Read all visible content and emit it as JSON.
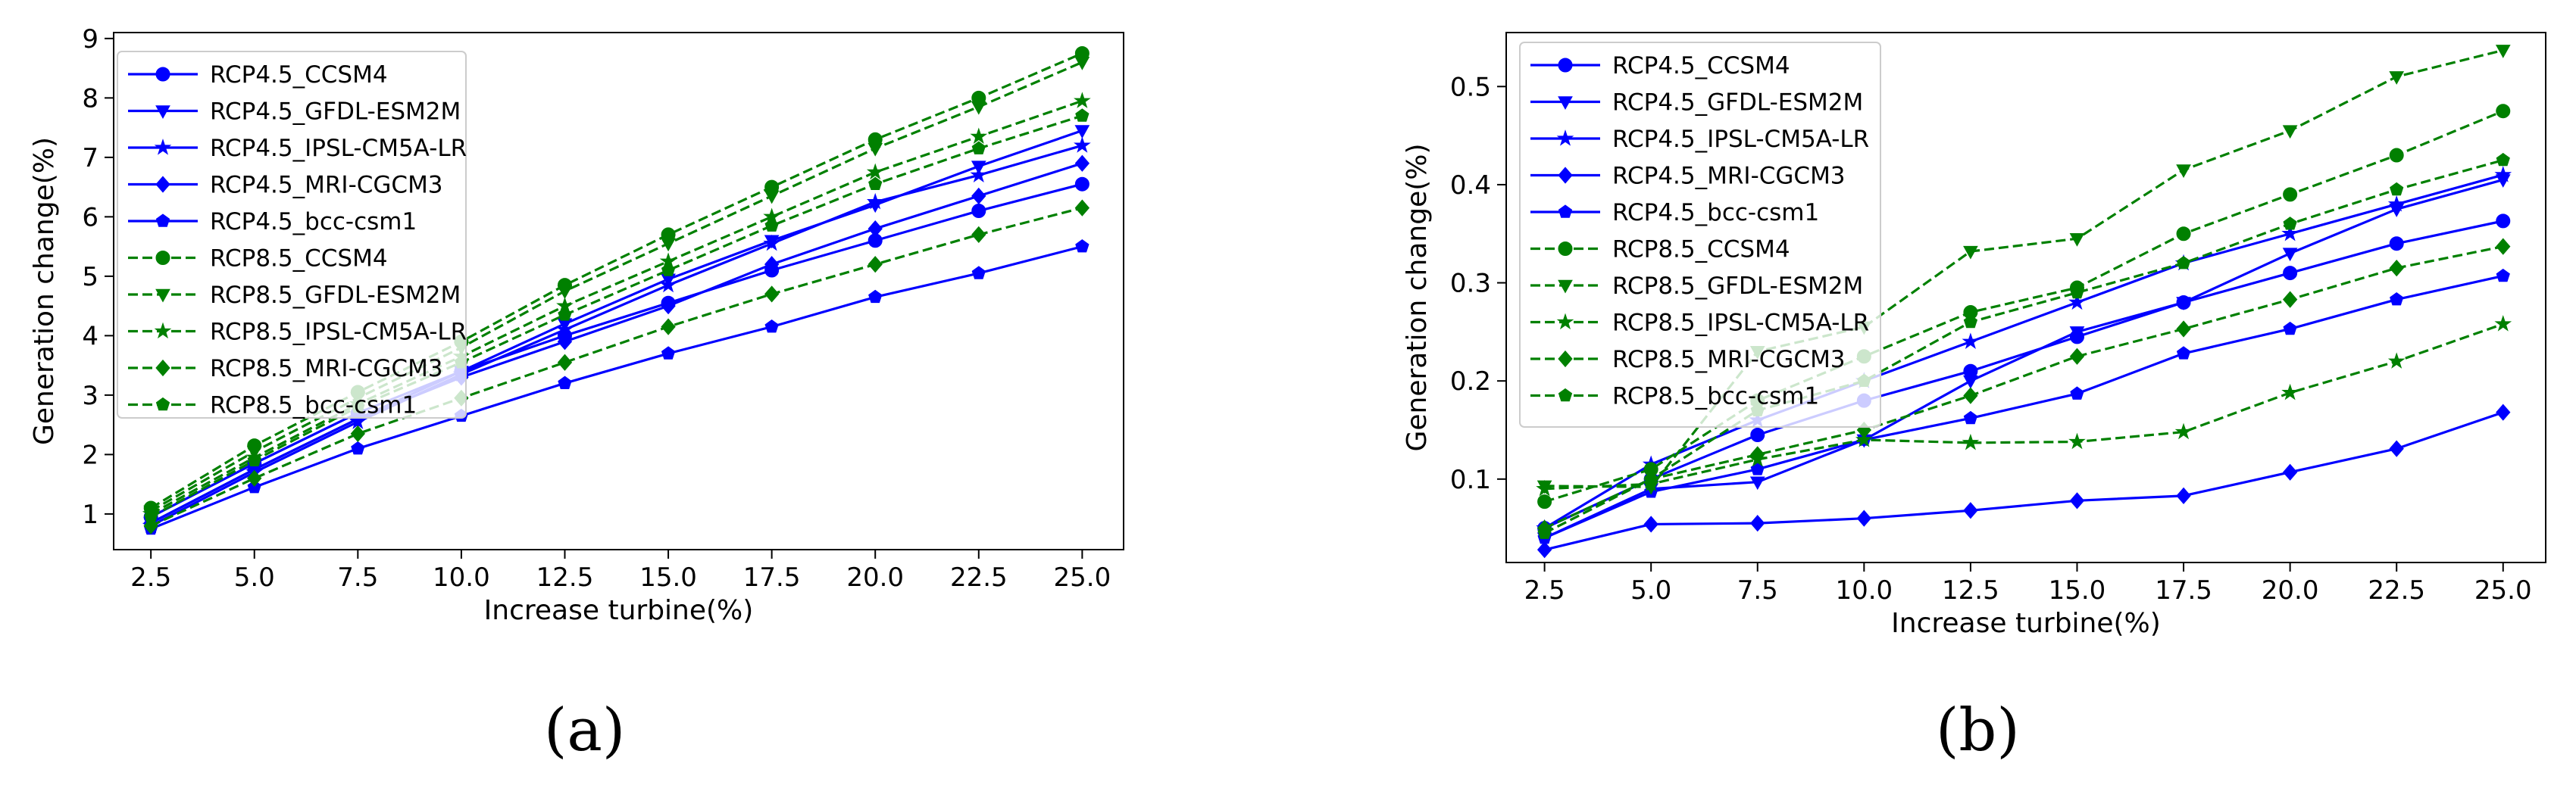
{
  "chart_data": [
    {
      "type": "line",
      "panel_label": "(a)",
      "xlabel": "Increase turbine(%)",
      "ylabel": "Generation change(%)",
      "xlim": [
        1.6,
        26.0
      ],
      "ylim": [
        0.4,
        9.1
      ],
      "xticks": [
        "2.5",
        "5.0",
        "7.5",
        "10.0",
        "12.5",
        "15.0",
        "17.5",
        "20.0",
        "22.5",
        "25.0"
      ],
      "yticks": [
        "1",
        "2",
        "3",
        "4",
        "5",
        "6",
        "7",
        "8",
        "9"
      ],
      "legend_position": "top-left",
      "x": [
        2.5,
        5.0,
        7.5,
        10.0,
        12.5,
        15.0,
        17.5,
        20.0,
        22.5,
        25.0
      ],
      "series": [
        {
          "name": "RCP4.5_CCSM4",
          "color": "#0000ff",
          "dash": "solid",
          "marker": "circle",
          "values": [
            0.95,
            1.85,
            2.7,
            3.4,
            4.0,
            4.55,
            5.1,
            5.6,
            6.1,
            6.55
          ]
        },
        {
          "name": "RCP4.5_GFDL-ESM2M",
          "color": "#0000ff",
          "dash": "solid",
          "marker": "triangle-down",
          "values": [
            0.85,
            1.75,
            2.6,
            3.4,
            4.2,
            4.95,
            5.6,
            6.2,
            6.85,
            7.45
          ]
        },
        {
          "name": "RCP4.5_IPSL-CM5A-LR",
          "color": "#0000ff",
          "dash": "solid",
          "marker": "star",
          "values": [
            0.8,
            1.7,
            2.55,
            3.35,
            4.1,
            4.85,
            5.55,
            6.25,
            6.7,
            7.2
          ]
        },
        {
          "name": "RCP4.5_MRI-CGCM3",
          "color": "#0000ff",
          "dash": "solid",
          "marker": "diamond",
          "values": [
            0.85,
            1.75,
            2.6,
            3.3,
            3.9,
            4.5,
            5.2,
            5.8,
            6.35,
            6.9
          ]
        },
        {
          "name": "RCP4.5_bcc-csm1",
          "color": "#0000ff",
          "dash": "solid",
          "marker": "pentagon",
          "values": [
            0.75,
            1.45,
            2.1,
            2.65,
            3.2,
            3.7,
            4.15,
            4.65,
            5.05,
            5.5
          ]
        },
        {
          "name": "RCP8.5_CCSM4",
          "color": "#008000",
          "dash": "dashed",
          "marker": "circle",
          "values": [
            1.1,
            2.15,
            3.05,
            3.9,
            4.85,
            5.7,
            6.5,
            7.3,
            8.0,
            8.75
          ]
        },
        {
          "name": "RCP8.5_GFDL-ESM2M",
          "color": "#008000",
          "dash": "dashed",
          "marker": "triangle-down",
          "values": [
            1.05,
            2.05,
            2.95,
            3.8,
            4.75,
            5.55,
            6.35,
            7.15,
            7.85,
            8.6
          ]
        },
        {
          "name": "RCP8.5_IPSL-CM5A-LR",
          "color": "#008000",
          "dash": "dashed",
          "marker": "star",
          "values": [
            1.0,
            1.95,
            2.85,
            3.65,
            4.5,
            5.25,
            6.0,
            6.75,
            7.35,
            7.95
          ]
        },
        {
          "name": "RCP8.5_MRI-CGCM3",
          "color": "#008000",
          "dash": "dashed",
          "marker": "diamond",
          "values": [
            0.8,
            1.6,
            2.35,
            2.95,
            3.55,
            4.15,
            4.7,
            5.2,
            5.7,
            6.15
          ]
        },
        {
          "name": "RCP8.5_bcc-csm1",
          "color": "#008000",
          "dash": "dashed",
          "marker": "pentagon",
          "values": [
            0.95,
            1.9,
            2.8,
            3.55,
            4.35,
            5.1,
            5.85,
            6.55,
            7.15,
            7.7
          ]
        }
      ]
    },
    {
      "type": "line",
      "panel_label": "(b)",
      "xlabel": "Increase turbine(%)",
      "ylabel": "Generation change(%)",
      "xlim": [
        1.6,
        26.0
      ],
      "ylim": [
        0.015,
        0.555
      ],
      "xticks": [
        "2.5",
        "5.0",
        "7.5",
        "10.0",
        "12.5",
        "15.0",
        "17.5",
        "20.0",
        "22.5",
        "25.0"
      ],
      "yticks": [
        "0.1",
        "0.2",
        "0.3",
        "0.4",
        "0.5"
      ],
      "legend_position": "top-left",
      "x": [
        2.5,
        5.0,
        7.5,
        10.0,
        12.5,
        15.0,
        17.5,
        20.0,
        22.5,
        25.0
      ],
      "series": [
        {
          "name": "RCP4.5_CCSM4",
          "color": "#0000ff",
          "dash": "solid",
          "marker": "circle",
          "values": [
            0.05,
            0.1,
            0.145,
            0.18,
            0.21,
            0.245,
            0.28,
            0.31,
            0.34,
            0.363
          ]
        },
        {
          "name": "RCP4.5_GFDL-ESM2M",
          "color": "#0000ff",
          "dash": "solid",
          "marker": "triangle-down",
          "values": [
            0.04,
            0.09,
            0.097,
            0.14,
            0.2,
            0.25,
            0.28,
            0.33,
            0.375,
            0.405
          ]
        },
        {
          "name": "RCP4.5_IPSL-CM5A-LR",
          "color": "#0000ff",
          "dash": "solid",
          "marker": "star",
          "values": [
            0.05,
            0.115,
            0.16,
            0.2,
            0.24,
            0.28,
            0.32,
            0.35,
            0.38,
            0.41
          ]
        },
        {
          "name": "RCP4.5_MRI-CGCM3",
          "color": "#0000ff",
          "dash": "solid",
          "marker": "diamond",
          "values": [
            0.028,
            0.054,
            0.055,
            0.06,
            0.068,
            0.078,
            0.083,
            0.107,
            0.131,
            0.168
          ]
        },
        {
          "name": "RCP4.5_bcc-csm1",
          "color": "#0000ff",
          "dash": "solid",
          "marker": "pentagon",
          "values": [
            0.04,
            0.087,
            0.11,
            0.14,
            0.162,
            0.187,
            0.228,
            0.253,
            0.283,
            0.307
          ]
        },
        {
          "name": "RCP8.5_CCSM4",
          "color": "#008000",
          "dash": "dashed",
          "marker": "circle",
          "values": [
            0.077,
            0.11,
            0.18,
            0.225,
            0.27,
            0.295,
            0.35,
            0.39,
            0.43,
            0.475
          ]
        },
        {
          "name": "RCP8.5_GFDL-ESM2M",
          "color": "#008000",
          "dash": "dashed",
          "marker": "triangle-down",
          "values": [
            0.093,
            0.092,
            0.23,
            0.255,
            0.332,
            0.345,
            0.415,
            0.455,
            0.51,
            0.537
          ]
        },
        {
          "name": "RCP8.5_IPSL-CM5A-LR",
          "color": "#008000",
          "dash": "dashed",
          "marker": "star",
          "values": [
            0.09,
            0.095,
            0.12,
            0.14,
            0.137,
            0.138,
            0.148,
            0.188,
            0.22,
            0.258
          ]
        },
        {
          "name": "RCP8.5_MRI-CGCM3",
          "color": "#008000",
          "dash": "dashed",
          "marker": "diamond",
          "values": [
            0.05,
            0.1,
            0.125,
            0.15,
            0.185,
            0.225,
            0.253,
            0.283,
            0.315,
            0.337
          ]
        },
        {
          "name": "RCP8.5_bcc-csm1",
          "color": "#008000",
          "dash": "dashed",
          "marker": "pentagon",
          "values": [
            0.045,
            0.1,
            0.17,
            0.2,
            0.26,
            0.29,
            0.32,
            0.36,
            0.395,
            0.425
          ]
        }
      ]
    }
  ]
}
